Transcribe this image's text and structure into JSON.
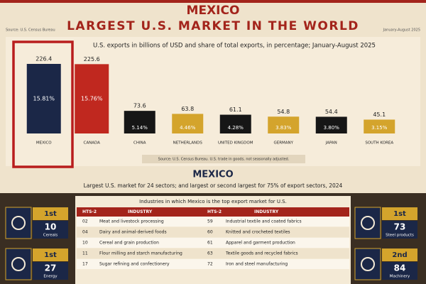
{
  "header": {
    "title": "MEXICO",
    "subtitle": "LARGEST U.S. MARKET IN THE WORLD",
    "source": "Source: U.S. Census Bureau",
    "period": "January-August 2025"
  },
  "chart_data": {
    "type": "bar",
    "title": "U.S. exports in billions of USD and share of total exports, in percentage; January-August 2025",
    "categories": [
      "MEXICO",
      "CANADA",
      "CHINA",
      "NETHERLANDS",
      "UNITED KINGDOM",
      "GERMANY",
      "JAPAN",
      "SOUTH KOREA"
    ],
    "values": [
      226.4,
      225.6,
      73.6,
      63.8,
      61.1,
      54.8,
      54.4,
      45.1
    ],
    "shares": [
      15.81,
      15.76,
      5.14,
      4.46,
      4.28,
      3.83,
      3.8,
      3.15
    ],
    "share_labels": [
      "15.81%",
      "15.76%",
      "5.14%",
      "4.46%",
      "4.28%",
      "3.83%",
      "3.80%",
      "3.15%"
    ],
    "colors": [
      "#1b2747",
      "#c0281f",
      "#161616",
      "#d4a42c",
      "#161616",
      "#d4a42c",
      "#161616",
      "#d4a42c"
    ],
    "note": "Source: U.S. Census Bureau. U.S. trade in goods, not seasonally adjusted."
  },
  "section": {
    "title": "MEXICO",
    "subtitle": "Largest U.S. market for 24 sectors; and largest or second largest for 75% of export sectors, 2024"
  },
  "table": {
    "title": "Industries in which Mexico is the top export market for U.S.",
    "header": [
      "HTS-2",
      "INDUSTRY",
      "HTS-2",
      "INDUSTRY"
    ],
    "rows": [
      [
        "02",
        "Meat and livestock processing",
        "59",
        "Industrial textile and coated fabrics"
      ],
      [
        "04",
        "Dairy and animal-derived foods",
        "60",
        "Knitted and crocheted textiles"
      ],
      [
        "10",
        "Cereal and grain production",
        "61",
        "Apparel and garment production"
      ],
      [
        "11",
        "Flour milling and starch manufacturing",
        "63",
        "Textile goods and recycled fabrics"
      ],
      [
        "17",
        "Sugar refining and confectionery",
        "72",
        "Iron and steel manufacturing"
      ]
    ]
  },
  "badges": [
    {
      "rank": "1st",
      "code": "10",
      "label": "Cereals"
    },
    {
      "rank": "1st",
      "code": "27",
      "label": "Energy"
    },
    {
      "rank": "1st",
      "code": "73",
      "label": "Steel products"
    },
    {
      "rank": "2nd",
      "code": "84",
      "label": "Machinery"
    }
  ]
}
